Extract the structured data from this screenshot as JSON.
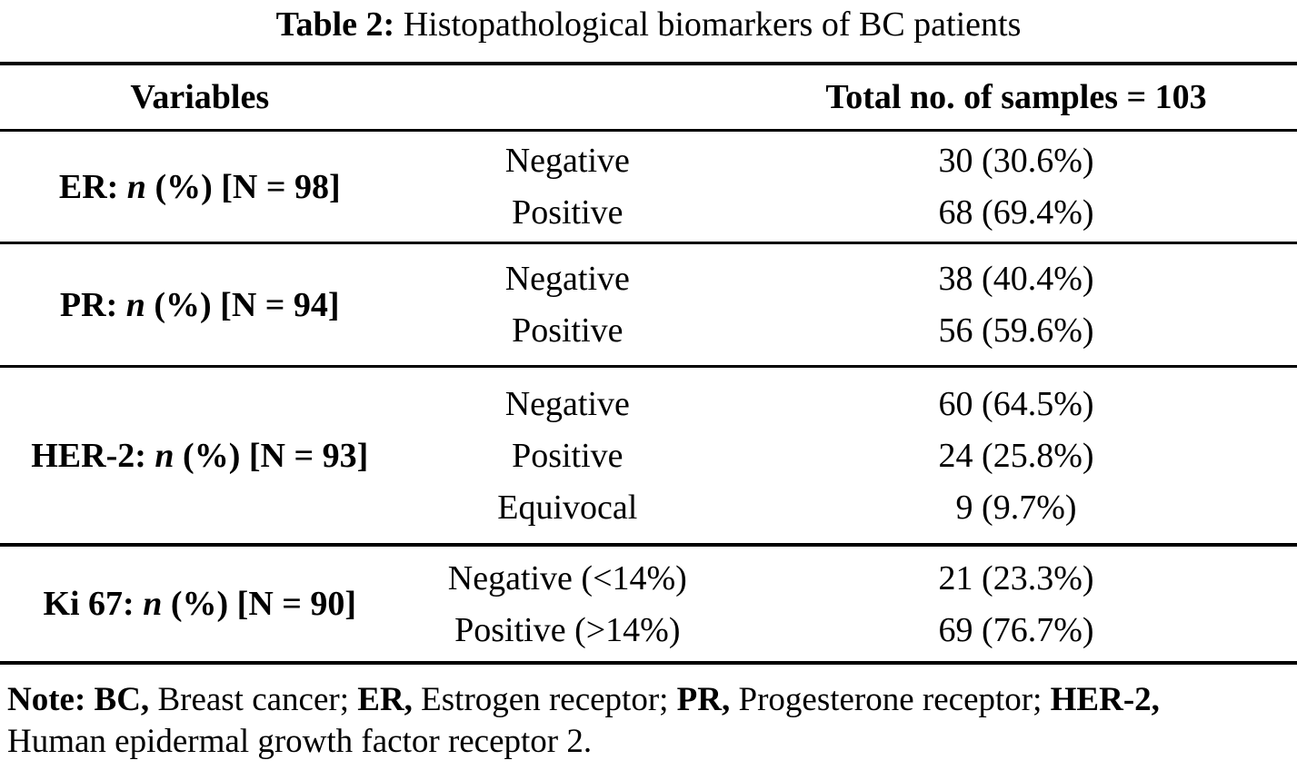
{
  "title": {
    "label": "Table 2:",
    "text": " Histopathological biomarkers of BC patients"
  },
  "header": {
    "variables": "Variables",
    "total": "Total no. of samples = 103"
  },
  "sections": [
    {
      "label_pre": "ER: ",
      "label_n": "n",
      "label_post": " (%) [N = 98]",
      "rows": [
        {
          "category": "Negative",
          "value": "30 (30.6%)"
        },
        {
          "category": "Positive",
          "value": "68 (69.4%)"
        }
      ]
    },
    {
      "label_pre": "PR: ",
      "label_n": "n",
      "label_post": " (%) [N = 94]",
      "rows": [
        {
          "category": "Negative",
          "value": "38 (40.4%)"
        },
        {
          "category": "Positive",
          "value": "56 (59.6%)"
        }
      ]
    },
    {
      "label_pre": "HER-2: ",
      "label_n": "n",
      "label_post": " (%) [N = 93]",
      "rows": [
        {
          "category": "Negative",
          "value": "60 (64.5%)"
        },
        {
          "category": "Positive",
          "value": "24 (25.8%)"
        },
        {
          "category": "Equivocal",
          "value": "9 (9.7%)"
        }
      ]
    },
    {
      "label_pre": "Ki 67: ",
      "label_n": "n",
      "label_post": " (%) [N = 90]",
      "rows": [
        {
          "category": "Negative (<14%)",
          "value": "21 (23.3%)"
        },
        {
          "category": "Positive (>14%)",
          "value": "69 (76.7%)"
        }
      ]
    }
  ],
  "note": {
    "s1": "Note: BC,",
    "s2": " Breast cancer; ",
    "s3": "ER,",
    "s4": " Estrogen receptor; ",
    "s5": "PR,",
    "s6": " Progesterone receptor; ",
    "s7": "HER-2,",
    "s8": "Human epidermal growth factor receptor 2."
  }
}
